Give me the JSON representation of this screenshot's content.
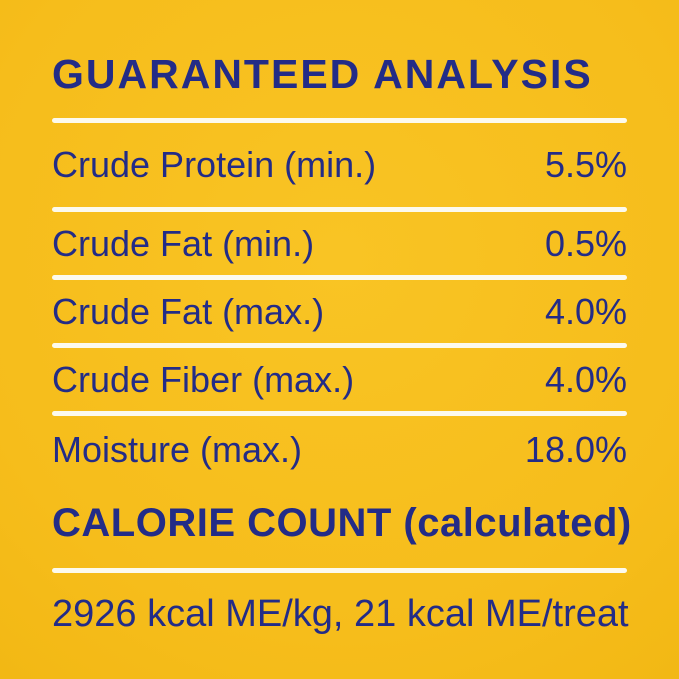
{
  "colors": {
    "background": "#F6BD1B",
    "text_navy": "#232C87",
    "divider_cream": "#FCFAEE"
  },
  "title": "GUARANTEED ANALYSIS",
  "analysis_rows": [
    {
      "label": "Crude Protein (min.)",
      "value": "5.5%"
    },
    {
      "label": "Crude Fat (min.)",
      "value": "0.5%"
    },
    {
      "label": "Crude Fat (max.)",
      "value": "4.0%"
    },
    {
      "label": "Crude Fiber (max.)",
      "value": "4.0%"
    },
    {
      "label": "Moisture (max.)",
      "value": "18.0%"
    }
  ],
  "calorie_section": {
    "heading": "CALORIE COUNT (calculated)",
    "value": "2926 kcal ME/kg, 21 kcal ME/treat"
  }
}
